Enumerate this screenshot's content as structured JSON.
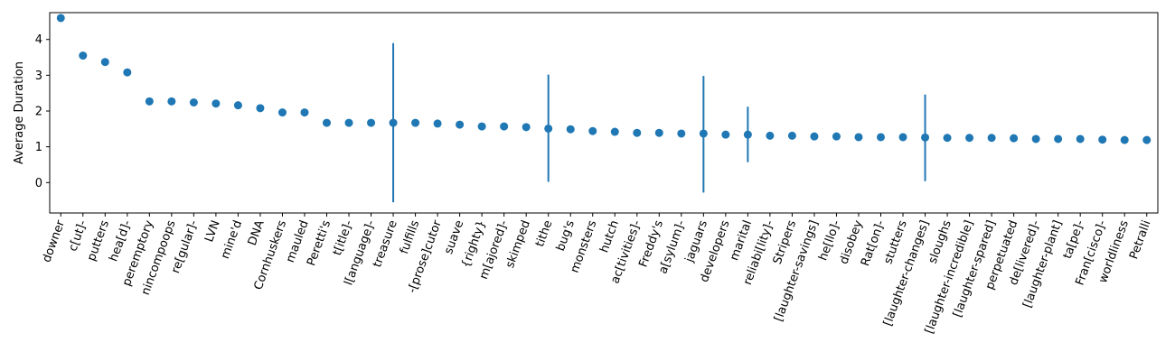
{
  "chart_data": {
    "type": "scatter",
    "title": "",
    "xlabel": "",
    "ylabel": "Average Duration",
    "ylim": [
      -0.85,
      4.75
    ],
    "yticks": [
      0,
      1,
      2,
      3,
      4
    ],
    "grid": false,
    "color": "#1f77b4",
    "x_label_rotation_deg": -70,
    "categories": [
      "downer",
      "c[ut]-",
      "putters",
      "hea[d]-",
      "peremptory",
      "nincompoops",
      "re[gular]-",
      "LVN",
      "mine'd",
      "DNA",
      "Cornhuskers",
      "mauled",
      "Peretti's",
      "t[itle]-",
      "l[anguage]-",
      "treasure",
      "fulfills",
      "-[prose]cutor",
      "suave",
      "{righty}",
      "m[ajored]-",
      "skimped",
      "tithe",
      "bug's",
      "monsters",
      "hutch",
      "ac[tivities]-",
      "Freddy's",
      "a[sylum]-",
      "jaguars",
      "developers",
      "marital",
      "reliabi[lity]-",
      "Stripers",
      "[laughter-savings]",
      "he[llo]-",
      "disobey",
      "Rat[on]-",
      "stutters",
      "[laughter-changes]",
      "sloughs",
      "[laughter-incredible]",
      "[laughter-spared]",
      "perpetuated",
      "de[livered]-",
      "[laughter-plant]",
      "ta[pe]-",
      "Fran[cisco]-",
      "worldliness",
      "Petralli"
    ],
    "values": [
      4.6,
      3.55,
      3.37,
      3.08,
      2.27,
      2.27,
      2.24,
      2.21,
      2.16,
      2.08,
      1.96,
      1.96,
      1.67,
      1.67,
      1.67,
      1.67,
      1.67,
      1.65,
      1.62,
      1.57,
      1.57,
      1.55,
      1.51,
      1.49,
      1.44,
      1.42,
      1.39,
      1.39,
      1.37,
      1.37,
      1.34,
      1.34,
      1.31,
      1.31,
      1.29,
      1.29,
      1.27,
      1.27,
      1.27,
      1.26,
      1.25,
      1.25,
      1.25,
      1.24,
      1.22,
      1.22,
      1.22,
      1.2,
      1.19,
      1.19
    ],
    "errors": [
      {
        "index": 15,
        "low": -0.55,
        "high": 3.9
      },
      {
        "index": 22,
        "low": 0.02,
        "high": 3.02
      },
      {
        "index": 29,
        "low": -0.28,
        "high": 2.98
      },
      {
        "index": 31,
        "low": 0.57,
        "high": 2.12
      },
      {
        "index": 39,
        "low": 0.04,
        "high": 2.46
      }
    ]
  }
}
